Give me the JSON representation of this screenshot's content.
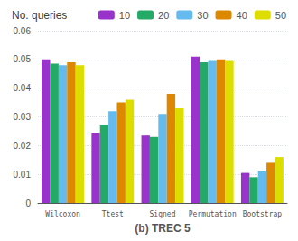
{
  "chart_data": {
    "type": "bar",
    "xlabel": "(b) TREC 5",
    "legend_title": "No. queries",
    "categories": [
      "Wilcoxon",
      "Ttest",
      "Signed",
      "Permutation",
      "Bootstrap"
    ],
    "series": [
      {
        "name": "10",
        "color": "#9933cc",
        "values": [
          0.05,
          0.0245,
          0.0235,
          0.051,
          0.0105
        ]
      },
      {
        "name": "20",
        "color": "#22aa66",
        "values": [
          0.0485,
          0.027,
          0.023,
          0.049,
          0.009
        ]
      },
      {
        "name": "30",
        "color": "#66bbee",
        "values": [
          0.048,
          0.032,
          0.031,
          0.0495,
          0.011
        ]
      },
      {
        "name": "40",
        "color": "#dd8800",
        "values": [
          0.049,
          0.035,
          0.038,
          0.05,
          0.014
        ]
      },
      {
        "name": "50",
        "color": "#dddd00",
        "values": [
          0.048,
          0.036,
          0.033,
          0.0495,
          0.016
        ]
      }
    ],
    "ylim": [
      0,
      0.06
    ],
    "yticks": [
      0,
      0.01,
      0.02,
      0.03,
      0.04,
      0.05,
      0.06
    ],
    "grid": true,
    "legend": "upper right"
  }
}
